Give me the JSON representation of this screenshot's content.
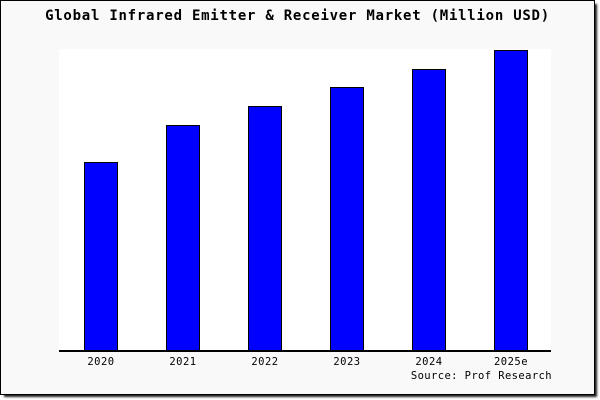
{
  "figure": {
    "background": "#f9f9f9",
    "plot_background": "#ffffff",
    "frame_border_color": "#000000"
  },
  "header": {
    "title": "Global Infrared Emitter & Receiver Market (Million USD)"
  },
  "footer": {
    "source_note": "Source: Prof Research"
  },
  "chart_data": {
    "type": "bar",
    "title": "Global Infrared Emitter & Receiver Market (Million USD)",
    "categories": [
      "2020",
      "2021",
      "2022",
      "2023",
      "2024",
      "2025e"
    ],
    "values": [
      62.7,
      75.0,
      81.3,
      87.7,
      93.7,
      100.0
    ],
    "values_note": "Y-axis has no ticks or labels in the image; values are relative bar heights normalized so the tallest bar (2025e) = 100",
    "xlabel": "",
    "ylabel": "",
    "ylim": [
      0,
      100
    ],
    "grid": false,
    "legend_position": "none",
    "bar_color": "#0000ff",
    "bar_edge_color": "#000000",
    "axis_line_color": "#000000",
    "source": "Source: Prof Research"
  }
}
